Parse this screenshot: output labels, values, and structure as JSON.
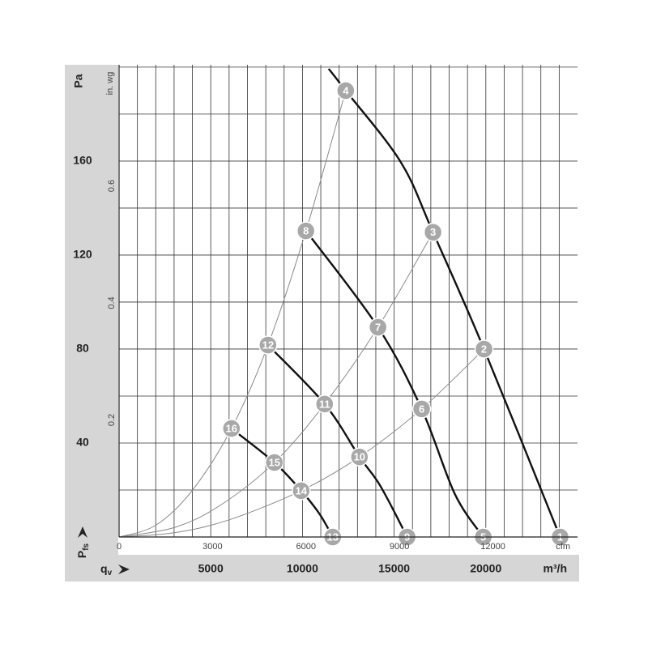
{
  "chart_data": {
    "type": "fan-curve",
    "y_label": "Pa",
    "y2_label": "in. wg",
    "x_label": "m³/h",
    "x2_label": "cfm",
    "y_symbol": {
      "main": "P",
      "sub": "fs"
    },
    "x_symbol": {
      "main": "q",
      "sub": "v"
    },
    "xlim": [
      0,
      25000
    ],
    "ylim": [
      0,
      201
    ],
    "x2lim": [
      0,
      14715
    ],
    "y2lim": [
      0,
      0.807
    ],
    "xticks": [
      5000,
      10000,
      15000,
      20000
    ],
    "yticks": [
      40,
      80,
      120,
      160
    ],
    "x2ticks": [
      0,
      3000,
      6000,
      9000,
      12000
    ],
    "y2ticks": [
      0.2,
      0.4,
      0.6
    ],
    "xgrid": [
      1000,
      2000,
      3000,
      4000,
      5000,
      6000,
      7000,
      8000,
      9000,
      10000,
      11000,
      12000,
      13000,
      14000,
      15000,
      16000,
      17000,
      18000,
      19000,
      20000,
      21000,
      22000,
      23000,
      24000
    ],
    "ygrid": [
      20,
      40,
      60,
      80,
      100,
      120,
      140,
      160,
      180,
      200
    ],
    "fan_color": "#111111",
    "system_color": "#8a8a8a",
    "marker_color": "#a8a8a8",
    "fan_curves": [
      {
        "x": [
          11430,
          12360,
          15360,
          17120,
          19900,
          24050
        ],
        "y": [
          199.3,
          190,
          159.6,
          129.7,
          80,
          0
        ]
      },
      {
        "x": [
          10190,
          14120,
          16500,
          18310,
          19860
        ],
        "y": [
          130.3,
          89.3,
          54.5,
          18.3,
          0
        ]
      },
      {
        "x": [
          8120,
          11210,
          13110,
          14250,
          15710
        ],
        "y": [
          81.7,
          56.6,
          34.1,
          21.7,
          0
        ]
      },
      {
        "x": [
          6130,
          8470,
          9930,
          10940,
          11650
        ],
        "y": [
          46.2,
          31.7,
          19.7,
          9.7,
          0
        ]
      }
    ],
    "system_curves": [
      {
        "x": [
          0,
          2000,
          4000,
          6130,
          8120,
          10190,
          12360
        ],
        "y": [
          0,
          5.0,
          19.9,
          46.2,
          81.7,
          130.3,
          190
        ]
      },
      {
        "x": [
          0,
          3000,
          5500,
          8470,
          11210,
          14120,
          17120
        ],
        "y": [
          0,
          4.0,
          13.4,
          31.7,
          56.6,
          89.3,
          129.7
        ]
      },
      {
        "x": [
          0,
          3000,
          6000,
          9930,
          13110,
          16500,
          19900
        ],
        "y": [
          0,
          1.8,
          7.3,
          19.7,
          34.1,
          54.5,
          80
        ]
      }
    ],
    "markers": [
      {
        "label": "1",
        "x": 24050,
        "y": 0
      },
      {
        "label": "2",
        "x": 19900,
        "y": 80
      },
      {
        "label": "3",
        "x": 17120,
        "y": 129.7
      },
      {
        "label": "4",
        "x": 12360,
        "y": 190
      },
      {
        "label": "5",
        "x": 19860,
        "y": 0
      },
      {
        "label": "6",
        "x": 16500,
        "y": 54.5
      },
      {
        "label": "7",
        "x": 14120,
        "y": 89.3
      },
      {
        "label": "8",
        "x": 10190,
        "y": 130.3
      },
      {
        "label": "9",
        "x": 15710,
        "y": 0
      },
      {
        "label": "10",
        "x": 13110,
        "y": 34.1
      },
      {
        "label": "11",
        "x": 11210,
        "y": 56.6
      },
      {
        "label": "12",
        "x": 8120,
        "y": 81.7
      },
      {
        "label": "13",
        "x": 11650,
        "y": 0
      },
      {
        "label": "14",
        "x": 9930,
        "y": 19.7
      },
      {
        "label": "15",
        "x": 8470,
        "y": 31.7
      },
      {
        "label": "16",
        "x": 6130,
        "y": 46.2
      }
    ]
  }
}
